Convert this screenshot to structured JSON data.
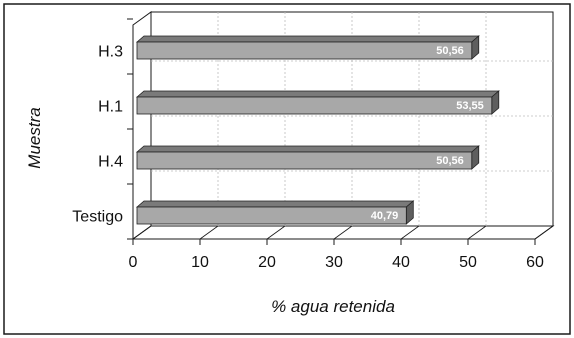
{
  "chart_data": {
    "type": "bar",
    "orientation": "horizontal",
    "style": "3d",
    "categories": [
      "Testigo",
      "H.4",
      "H.1",
      "H.3"
    ],
    "values": [
      40.79,
      50.56,
      53.55,
      50.56
    ],
    "data_labels": [
      "40,79",
      "50,56",
      "53,55",
      "50,56"
    ],
    "xlabel": "% agua retenida",
    "ylabel": "Muestra",
    "xlim": [
      0,
      60
    ],
    "xticks": [
      0,
      10,
      20,
      30,
      40,
      50,
      60
    ],
    "grid": true,
    "legend": "none",
    "colors": {
      "bar_front": "#a8a8a8",
      "bar_top": "#7a7a7a",
      "bar_side": "#5e5e5e",
      "frame": "#1a1a1a",
      "grid": "#bdbdbd"
    }
  }
}
